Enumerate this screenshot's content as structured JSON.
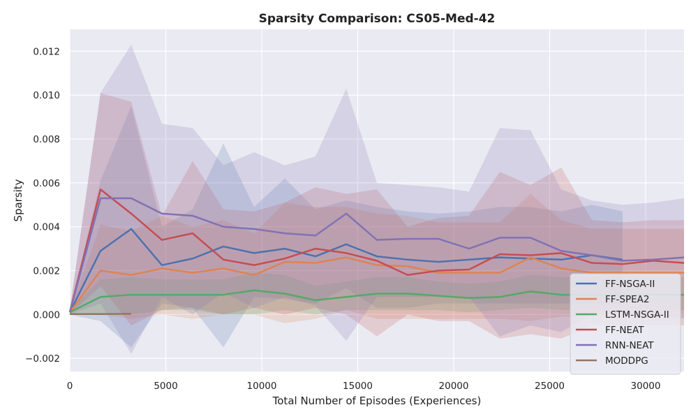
{
  "chart_data": {
    "type": "line",
    "title": "Sparsity Comparison: CS05-Med-42",
    "xlabel": "Total Number of Episodes (Experiences)",
    "ylabel": "Sparsity",
    "xlim": [
      0,
      32000
    ],
    "ylim": [
      -0.0026,
      0.013
    ],
    "xticks": [
      0,
      5000,
      10000,
      15000,
      20000,
      25000,
      30000
    ],
    "xtick_labels": [
      "0",
      "5000",
      "10000",
      "15000",
      "20000",
      "25000",
      "30000"
    ],
    "yticks": [
      -0.002,
      0.0,
      0.002,
      0.004,
      0.006,
      0.008,
      0.01,
      0.012
    ],
    "ytick_labels": [
      "−0.002",
      "0.000",
      "0.002",
      "0.004",
      "0.006",
      "0.008",
      "0.010",
      "0.012"
    ],
    "grid": true,
    "legend_position": "lower-right",
    "background": "#eaeaf2",
    "series": [
      {
        "name": "FF-NSGA-II",
        "color": "#4c72b0",
        "x": [
          0,
          1600,
          3200,
          4800,
          6400,
          8000,
          9600,
          11200,
          12800,
          14400,
          16000,
          17600,
          19200,
          20800,
          22400,
          24000,
          25600,
          27200,
          28800
        ],
        "y": [
          0.0001,
          0.0029,
          0.0039,
          0.00225,
          0.00255,
          0.0031,
          0.0028,
          0.003,
          0.00265,
          0.0032,
          0.00265,
          0.0025,
          0.0024,
          0.0025,
          0.0026,
          0.00255,
          0.0025,
          0.0027,
          0.0025
        ],
        "lower": [
          0,
          -0.0003,
          -0.0015,
          0.0005,
          0.0003,
          -0.0015,
          0.0008,
          0.0007,
          0.0005,
          0.0012,
          0.0003,
          0.0003,
          0.0005,
          0.0005,
          0.0005,
          0.0005,
          0.0005,
          0.0005,
          0.0005
        ],
        "upper": [
          0.0002,
          0.0061,
          0.0095,
          0.004,
          0.0048,
          0.0078,
          0.0049,
          0.0062,
          0.0048,
          0.0052,
          0.0049,
          0.0047,
          0.0046,
          0.0047,
          0.0049,
          0.0049,
          0.0047,
          0.005,
          0.0047
        ]
      },
      {
        "name": "FF-SPEA2",
        "color": "#dd8452",
        "x": [
          0,
          1600,
          3200,
          4800,
          6400,
          8000,
          9600,
          11200,
          12800,
          14400,
          16000,
          17600,
          19200,
          20800,
          22400,
          24000,
          25600,
          27200,
          28800,
          30400,
          32000
        ],
        "y": [
          0.0001,
          0.002,
          0.0018,
          0.0021,
          0.0019,
          0.0021,
          0.0018,
          0.0024,
          0.00235,
          0.0026,
          0.00225,
          0.0022,
          0.0019,
          0.0019,
          0.0019,
          0.0026,
          0.0021,
          0.0019,
          0.0019,
          0.0019,
          0.0019
        ],
        "lower": [
          0,
          0,
          -0.0002,
          0,
          -0.0002,
          0,
          0,
          -0.0004,
          -0.0002,
          0.0002,
          -0.0002,
          -0.0002,
          -0.0002,
          -0.0002,
          -0.0002,
          -0.0003,
          -0.0001,
          -0.0001,
          -0.0001,
          -0.0001,
          -0.0001
        ],
        "upper": [
          0.0002,
          0.0041,
          0.0038,
          0.0045,
          0.004,
          0.0043,
          0.0037,
          0.0051,
          0.0049,
          0.0049,
          0.0046,
          0.0045,
          0.0042,
          0.0042,
          0.0042,
          0.0055,
          0.0043,
          0.0039,
          0.0039,
          0.0039,
          0.0039
        ]
      },
      {
        "name": "LSTM-NSGA-II",
        "color": "#55a868",
        "x": [
          0,
          1600,
          3200,
          4800,
          6400,
          8000,
          9600,
          11200,
          12800,
          14400,
          16000,
          17600,
          19200,
          20800,
          22400,
          24000,
          25600,
          27200,
          28800,
          30400,
          32000
        ],
        "y": [
          0.0001,
          0.0008,
          0.0009,
          0.0009,
          0.0009,
          0.0009,
          0.0011,
          0.00095,
          0.00065,
          0.0008,
          0.00095,
          0.00095,
          0.00085,
          0.00075,
          0.0008,
          0.00105,
          0.0009,
          0.0009,
          0.0009,
          0.0009,
          0.0009
        ],
        "lower": [
          0,
          0,
          0,
          0.0002,
          0.0002,
          0,
          0,
          0.0002,
          0,
          0.0002,
          0.0002,
          0.0002,
          0.0002,
          0.0001,
          0.0002,
          0.0003,
          0.0002,
          0.0002,
          0.0002,
          0.0002,
          0.0002
        ],
        "upper": [
          0.0002,
          0.0016,
          0.0017,
          0.0016,
          0.0016,
          0.0016,
          0.0019,
          0.0018,
          0.0013,
          0.0015,
          0.0017,
          0.0017,
          0.0015,
          0.0014,
          0.0015,
          0.0018,
          0.0017,
          0.0017,
          0.0017,
          0.0017,
          0.0017
        ]
      },
      {
        "name": "FF-NEAT",
        "color": "#c44e52",
        "x": [
          0,
          1600,
          3200,
          4800,
          6400,
          8000,
          9600,
          11200,
          12800,
          14400,
          16000,
          17600,
          19200,
          20800,
          22400,
          24000,
          25600,
          27200,
          28800,
          30400,
          32000
        ],
        "y": [
          0.0001,
          0.0057,
          0.0046,
          0.0034,
          0.0037,
          0.0025,
          0.00225,
          0.00255,
          0.003,
          0.0028,
          0.00245,
          0.0018,
          0.002,
          0.00205,
          0.00275,
          0.0027,
          0.0028,
          0.00235,
          0.0023,
          0.00245,
          0.00235
        ],
        "lower": [
          0,
          0.0013,
          -0.0005,
          0.0002,
          0.0003,
          0,
          0.0003,
          0,
          0.0003,
          0,
          -0.001,
          0,
          -0.0003,
          -0.0003,
          -0.0011,
          -0.0009,
          -0.0011,
          -0.0005,
          -0.0005,
          -0.0005,
          -0.0005
        ],
        "upper": [
          0.0002,
          0.0101,
          0.0097,
          0.0045,
          0.007,
          0.0048,
          0.0047,
          0.0051,
          0.0058,
          0.0055,
          0.0057,
          0.004,
          0.0044,
          0.0045,
          0.0065,
          0.0059,
          0.0067,
          0.0043,
          0.0042,
          0.0043,
          0.0043
        ]
      },
      {
        "name": "RNN-NEAT",
        "color": "#8172b3",
        "x": [
          0,
          1600,
          3200,
          4800,
          6400,
          8000,
          9600,
          11200,
          12800,
          14400,
          16000,
          17600,
          19200,
          20800,
          22400,
          24000,
          25600,
          27200,
          28800,
          30400,
          32000
        ],
        "y": [
          0.0001,
          0.0053,
          0.0053,
          0.0046,
          0.0045,
          0.004,
          0.0039,
          0.0037,
          0.0036,
          0.0046,
          0.0034,
          0.00345,
          0.00345,
          0.003,
          0.0035,
          0.0035,
          0.0029,
          0.0027,
          0.00245,
          0.0025,
          0.0026
        ],
        "lower": [
          0,
          0.0005,
          -0.0018,
          0.0008,
          0,
          0.001,
          0.0003,
          0.0008,
          0.0004,
          -0.0012,
          0.0008,
          0.0008,
          0.0008,
          0.0008,
          -0.001,
          -0.0005,
          -0.0008,
          0,
          0,
          -0.0002,
          -0.0002
        ],
        "upper": [
          0.0002,
          0.0101,
          0.0123,
          0.0087,
          0.0085,
          0.0068,
          0.0074,
          0.0068,
          0.0072,
          0.0103,
          0.006,
          0.0059,
          0.0058,
          0.0056,
          0.0085,
          0.0084,
          0.0057,
          0.0052,
          0.005,
          0.0051,
          0.0053
        ]
      },
      {
        "name": "MODDPG",
        "color": "#937860",
        "x": [
          0,
          1600,
          3200
        ],
        "y": [
          2e-05,
          2e-05,
          3e-05
        ],
        "lower": [
          0,
          0,
          0
        ],
        "upper": [
          4e-05,
          4e-05,
          6e-05
        ]
      }
    ]
  }
}
